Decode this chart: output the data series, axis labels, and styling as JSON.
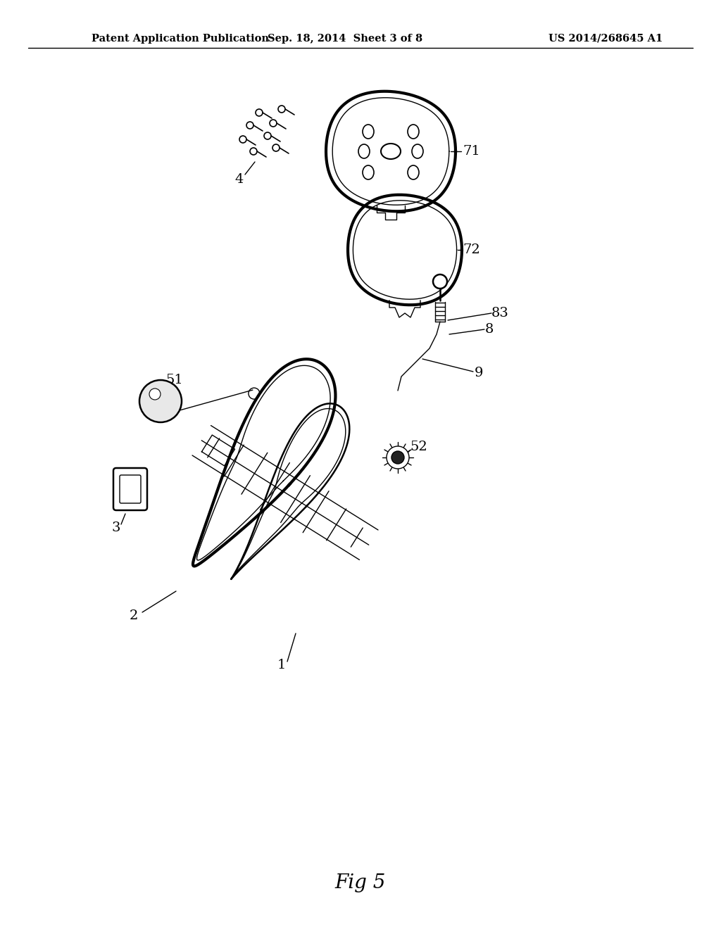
{
  "title": "Fig 5",
  "header_left": "Patent Application Publication",
  "header_mid": "Sep. 18, 2014  Sheet 3 of 8",
  "header_right": "US 2014/268645 A1",
  "bg_color": "#ffffff",
  "line_color": "#000000",
  "font_size_header": 10.5,
  "font_size_label": 14,
  "font_size_title": 20
}
